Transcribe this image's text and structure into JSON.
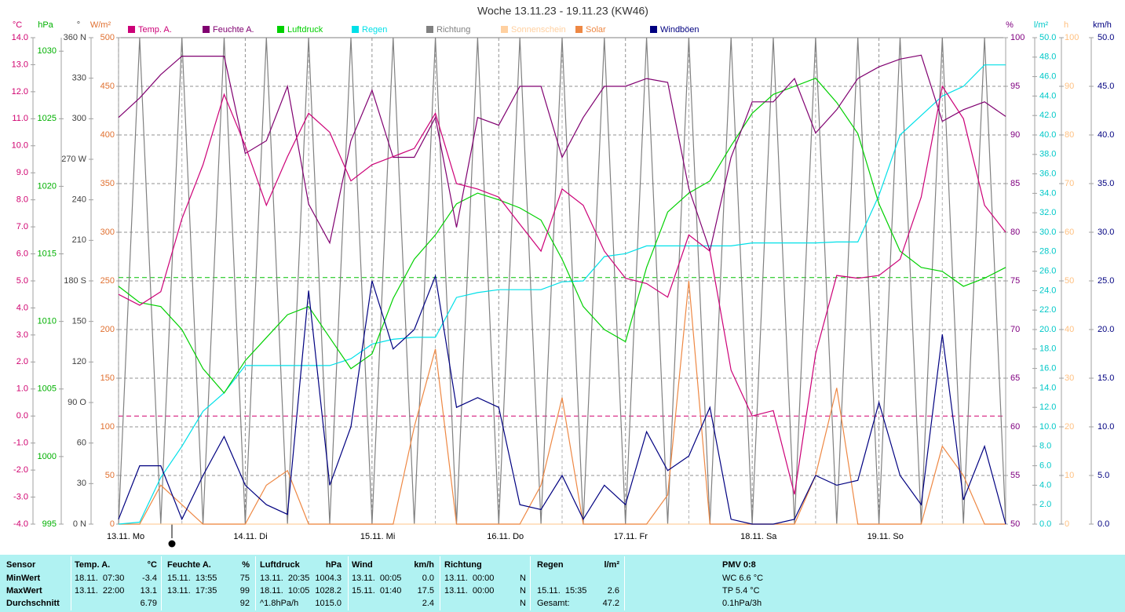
{
  "chart_data": {
    "type": "line",
    "title": "Woche 13.11.23 - 19.11.23 (KW46)",
    "x": [
      0,
      4,
      8,
      12,
      16,
      20,
      24,
      28,
      32,
      36,
      40,
      44,
      48,
      52,
      56,
      60,
      64,
      68,
      72,
      76,
      80,
      84,
      88,
      92,
      96,
      100,
      104,
      108,
      112,
      116,
      120,
      124,
      128,
      132,
      136,
      140,
      144,
      148,
      152,
      156,
      160,
      164,
      168
    ],
    "xlim": [
      0,
      168
    ],
    "xticks": [
      {
        "value": 0,
        "label": "13.11. Mo"
      },
      {
        "value": 24,
        "label": "14.11. Di"
      },
      {
        "value": 48,
        "label": "15.11. Mi"
      },
      {
        "value": 72,
        "label": "16.11. Do"
      },
      {
        "value": 96,
        "label": "17.11. Fr"
      },
      {
        "value": 120,
        "label": "18.11. Sa"
      },
      {
        "value": 144,
        "label": "19.11. So"
      }
    ],
    "grid": true,
    "grid_axis": "windb",
    "axes": [
      {
        "id": "temp",
        "unit": "°C",
        "color": "#d0006f",
        "lim": [
          -4,
          14
        ],
        "ticks": [
          {
            "value": -4,
            "label": "-4.0"
          },
          {
            "value": -3,
            "label": "-3.0"
          },
          {
            "value": -2,
            "label": "-2.0"
          },
          {
            "value": -1,
            "label": "-1.0"
          },
          {
            "value": 0,
            "label": "0.0"
          },
          {
            "value": 1,
            "label": "1.0"
          },
          {
            "value": 2,
            "label": "2.0"
          },
          {
            "value": 3,
            "label": "3.0"
          },
          {
            "value": 4,
            "label": "4.0"
          },
          {
            "value": 5,
            "label": "5.0"
          },
          {
            "value": 6,
            "label": "6.0"
          },
          {
            "value": 7,
            "label": "7.0"
          },
          {
            "value": 8,
            "label": "8.0"
          },
          {
            "value": 9,
            "label": "9.0"
          },
          {
            "value": 10,
            "label": "10.0"
          },
          {
            "value": 11,
            "label": "11.0"
          },
          {
            "value": 12,
            "label": "12.0"
          },
          {
            "value": 13,
            "label": "13.0"
          },
          {
            "value": 14,
            "label": "14.0"
          }
        ]
      },
      {
        "id": "press",
        "unit": "hPa",
        "color": "#00b000",
        "lim": [
          995,
          1031
        ],
        "ticks": [
          995,
          1000,
          1005,
          1010,
          1015,
          1020,
          1025,
          1030
        ]
      },
      {
        "id": "dir",
        "unit": "°",
        "color": "#404040",
        "lim": [
          0,
          360
        ],
        "ticks": [
          {
            "value": 0,
            "label": "0 N"
          },
          30,
          60,
          {
            "value": 90,
            "label": "90 O"
          },
          120,
          150,
          {
            "value": 180,
            "label": "180 S"
          },
          210,
          240,
          {
            "value": 270,
            "label": "270 W"
          },
          300,
          330,
          {
            "value": 360,
            "label": "360 N"
          }
        ]
      },
      {
        "id": "solar",
        "unit": "W/m²",
        "color": "#e07030",
        "lim": [
          0,
          500
        ],
        "ticks": [
          0,
          50,
          100,
          150,
          200,
          250,
          300,
          350,
          400,
          450,
          500
        ]
      },
      {
        "id": "hum",
        "unit": "%",
        "color": "#800080",
        "lim": [
          50,
          100
        ],
        "ticks": [
          50,
          55,
          60,
          65,
          70,
          75,
          80,
          85,
          90,
          95,
          100
        ]
      },
      {
        "id": "rain",
        "unit": "l/m²",
        "color": "#00c8c8",
        "lim": [
          0,
          50
        ],
        "ticks": [
          {
            "value": 0,
            "label": "0.0"
          },
          {
            "value": 2,
            "label": "2.0"
          },
          {
            "value": 4,
            "label": "4.0"
          },
          {
            "value": 6,
            "label": "6.0"
          },
          {
            "value": 8,
            "label": "8.0"
          },
          {
            "value": 10,
            "label": "10.0"
          },
          {
            "value": 12,
            "label": "12.0"
          },
          {
            "value": 14,
            "label": "14.0"
          },
          {
            "value": 16,
            "label": "16.0"
          },
          {
            "value": 18,
            "label": "18.0"
          },
          {
            "value": 20,
            "label": "20.0"
          },
          {
            "value": 22,
            "label": "22.0"
          },
          {
            "value": 24,
            "label": "24.0"
          },
          {
            "value": 26,
            "label": "26.0"
          },
          {
            "value": 28,
            "label": "28.0"
          },
          {
            "value": 30,
            "label": "30.0"
          },
          {
            "value": 32,
            "label": "32.0"
          },
          {
            "value": 34,
            "label": "34.0"
          },
          {
            "value": 36,
            "label": "36.0"
          },
          {
            "value": 38,
            "label": "38.0"
          },
          {
            "value": 40,
            "label": "40.0"
          },
          {
            "value": 42,
            "label": "42.0"
          },
          {
            "value": 44,
            "label": "44.0"
          },
          {
            "value": 46,
            "label": "46.0"
          },
          {
            "value": 48,
            "label": "48.0"
          },
          {
            "value": 50,
            "label": "50.0"
          }
        ]
      },
      {
        "id": "sun",
        "unit": "h",
        "color": "#ffc080",
        "lim": [
          0,
          100
        ],
        "ticks": [
          0,
          10,
          20,
          30,
          40,
          50,
          60,
          70,
          80,
          90,
          100
        ]
      },
      {
        "id": "windb",
        "unit": "km/h",
        "color": "#000080",
        "lim": [
          0,
          50
        ],
        "ticks": [
          {
            "value": 0,
            "label": "0.0"
          },
          {
            "value": 5,
            "label": "5.0"
          },
          {
            "value": 10,
            "label": "10.0"
          },
          {
            "value": 15,
            "label": "15.0"
          },
          {
            "value": 20,
            "label": "20.0"
          },
          {
            "value": 25,
            "label": "25.0"
          },
          {
            "value": 30,
            "label": "30.0"
          },
          {
            "value": 35,
            "label": "35.0"
          },
          {
            "value": 40,
            "label": "40.0"
          },
          {
            "value": 45,
            "label": "45.0"
          },
          {
            "value": 50,
            "label": "50.0"
          }
        ]
      }
    ],
    "ref_lines": [
      {
        "axis": "press",
        "value": 1013.25,
        "color": "#00c000"
      },
      {
        "axis": "temp",
        "value": 0,
        "color": "#d0006f"
      }
    ],
    "series": [
      {
        "name": "Temp. A.",
        "color": "#cc0077",
        "axis": "temp",
        "values": [
          4.5,
          4.1,
          4.6,
          7.3,
          9.3,
          11.9,
          10.0,
          7.8,
          9.6,
          11.2,
          10.5,
          8.7,
          9.3,
          9.6,
          9.9,
          11.2,
          8.6,
          8.4,
          8.1,
          7.1,
          6.1,
          8.4,
          7.8,
          6.1,
          5.1,
          4.9,
          4.4,
          6.7,
          6.1,
          1.7,
          0.0,
          0.2,
          -2.9,
          2.3,
          5.2,
          5.1,
          5.2,
          5.8,
          8.1,
          12.2,
          11.0,
          7.8,
          6.8
        ]
      },
      {
        "name": "Feuchte A.",
        "color": "#800070",
        "axis": "hum",
        "values": [
          91.8,
          93.8,
          96.2,
          98.1,
          98.1,
          98.1,
          88.1,
          89.4,
          95,
          82.9,
          78.9,
          89.4,
          94.6,
          87.7,
          87.7,
          91.8,
          80.5,
          91.8,
          91,
          95,
          95,
          87.7,
          91.8,
          95,
          95,
          95.8,
          95.4,
          84.5,
          78.1,
          87.7,
          93.4,
          93.4,
          95.8,
          90.2,
          92.6,
          95.8,
          97,
          97.8,
          98.2,
          91.4,
          92.6,
          93.4,
          91.9
        ]
      },
      {
        "name": "Luftdruck",
        "color": "#00d000",
        "axis": "press",
        "values": [
          1012.6,
          1011.4,
          1011.1,
          1009.4,
          1006.5,
          1004.7,
          1007.1,
          1008.8,
          1010.5,
          1011.1,
          1008.8,
          1006.5,
          1007.6,
          1011.7,
          1014.6,
          1016.4,
          1018.7,
          1019.5,
          1019,
          1018.4,
          1017.5,
          1014.6,
          1011.1,
          1009.4,
          1008.5,
          1014,
          1018.1,
          1019.5,
          1020.4,
          1023,
          1025.4,
          1026.8,
          1027.4,
          1028,
          1026.2,
          1023.9,
          1018.7,
          1015.2,
          1014,
          1013.7,
          1012.6,
          1013.2,
          1014
        ]
      },
      {
        "name": "Regen",
        "color": "#00e0e8",
        "axis": "rain",
        "values": [
          0,
          0.2,
          4.8,
          8,
          11.6,
          13.5,
          16.3,
          16.3,
          16.3,
          16.3,
          16.3,
          17,
          18.5,
          19,
          19.2,
          19.2,
          23.3,
          23.8,
          24.1,
          24.1,
          24.1,
          24.9,
          25,
          27.5,
          27.8,
          28.6,
          28.6,
          28.6,
          28.6,
          28.6,
          28.9,
          28.9,
          28.9,
          28.9,
          29,
          29,
          33.8,
          40,
          42,
          44,
          45,
          47.2,
          47.2
        ]
      },
      {
        "name": "Richtung",
        "color": "#808080",
        "axis": "dir",
        "values": [
          0,
          360,
          0,
          360,
          0,
          360,
          0,
          360,
          0,
          360,
          0,
          360,
          0,
          360,
          0,
          360,
          0,
          360,
          0,
          360,
          0,
          360,
          0,
          360,
          0,
          360,
          0,
          360,
          0,
          360,
          0,
          360,
          0,
          360,
          0,
          360,
          0,
          360,
          0,
          360,
          0,
          360,
          0
        ]
      },
      {
        "name": "Sonnenschein",
        "color": "#ffd0a0",
        "axis": "sun",
        "values": [
          0,
          0,
          0,
          0,
          0,
          0,
          0,
          0,
          0,
          0,
          0,
          0,
          0,
          0,
          0,
          0,
          0,
          0,
          0,
          0,
          0,
          0,
          0,
          0,
          0,
          0,
          0,
          0,
          0,
          0,
          0,
          0,
          0,
          0,
          0,
          0,
          0,
          0,
          0,
          0,
          0,
          0,
          0
        ]
      },
      {
        "name": "Solar",
        "color": "#ee8844",
        "axis": "solar",
        "values": [
          0,
          0,
          40,
          20,
          0,
          0,
          0,
          40,
          55,
          0,
          0,
          0,
          0,
          0,
          100,
          180,
          0,
          0,
          0,
          0,
          40,
          130,
          0,
          0,
          0,
          0,
          30,
          250,
          0,
          0,
          0,
          0,
          0,
          50,
          140,
          0,
          0,
          0,
          0,
          80,
          50,
          0,
          0
        ]
      },
      {
        "name": "Windböen",
        "color": "#000080",
        "axis": "windb",
        "values": [
          0.5,
          6,
          6,
          0.5,
          5,
          9,
          4,
          2,
          1,
          24,
          4,
          10,
          25,
          18,
          20,
          25.5,
          12,
          13,
          12,
          2,
          1.5,
          5,
          0.5,
          4,
          2,
          9.5,
          5.5,
          7,
          12,
          0.5,
          0,
          0,
          0.5,
          5,
          4,
          4.5,
          12.5,
          5,
          2,
          19.5,
          2.5,
          8,
          0
        ]
      }
    ]
  },
  "stats": {
    "sensor": {
      "title": "Sensor",
      "rows": [
        "MinWert",
        "MaxWert",
        "Durchschnitt"
      ]
    },
    "groups": [
      {
        "title": "Temp. A.",
        "unit": "°C",
        "rows": [
          {
            "time": "18.11.  07:30",
            "value": -3.4
          },
          {
            "time": "13.11.  22:00",
            "value": 13.1
          },
          {
            "value": 6.79
          }
        ]
      },
      {
        "title": "Feuchte A.",
        "unit": "%",
        "rows": [
          {
            "time": "15.11.  13:55",
            "value": 75
          },
          {
            "time": "13.11.  17:35",
            "value": 99
          },
          {
            "value": 92
          }
        ]
      },
      {
        "title": "Luftdruck",
        "unit": "hPa",
        "rows": [
          {
            "time": "13.11.  20:35",
            "value": 1004.3
          },
          {
            "time": "18.11.  10:05",
            "value": 1028.2
          },
          {
            "time": "^1.8hPa/h",
            "value": "1015.0"
          }
        ]
      },
      {
        "title": "Wind",
        "unit": "km/h",
        "rows": [
          {
            "time": "13.11.  00:05",
            "value": "0.0"
          },
          {
            "time": "15.11.  01:40",
            "value": 17.5
          },
          {
            "value": 2.4
          }
        ]
      },
      {
        "title": "Richtung",
        "rows": [
          {
            "time": "13.11.  00:00",
            "value": "N"
          },
          {
            "time": "13.11.  00:00",
            "value": "N"
          },
          {
            "value": "N"
          }
        ]
      },
      {
        "title": "Regen",
        "unit": "l/m²",
        "rows": [
          null,
          {
            "time": "15.11.  15:35",
            "value": 2.6
          },
          {
            "time": "Gesamt:",
            "value": 47.2
          }
        ]
      }
    ],
    "pmv": {
      "title": "PMV 0:8",
      "rows": [
        "WC 6.6 °C",
        "TP 5.4 °C",
        "0.1hPa/3h"
      ]
    }
  }
}
